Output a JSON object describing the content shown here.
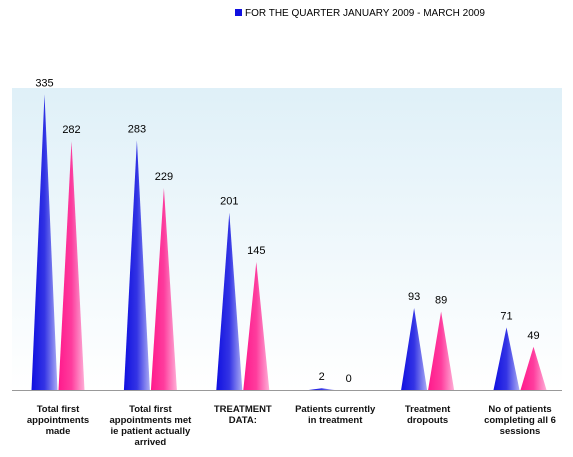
{
  "chart_data": {
    "type": "cone",
    "categories": [
      "Total first appointments made",
      "Total first appointments met ie patient actually arrived",
      "TREATMENT DATA:",
      "Patients currently in treatment",
      "Treatment dropouts",
      "No of patients completing all 6 sessions"
    ],
    "series": [
      {
        "name": "FOR THE QUARTER JANUARY 2009 - MARCH 2009",
        "color": "#1010e0",
        "values": [
          335,
          283,
          201,
          2,
          93,
          71
        ]
      },
      {
        "color": "#ff1a8c",
        "values": [
          282,
          229,
          145,
          0,
          89,
          49
        ]
      }
    ],
    "ylim": [
      0,
      340
    ]
  }
}
